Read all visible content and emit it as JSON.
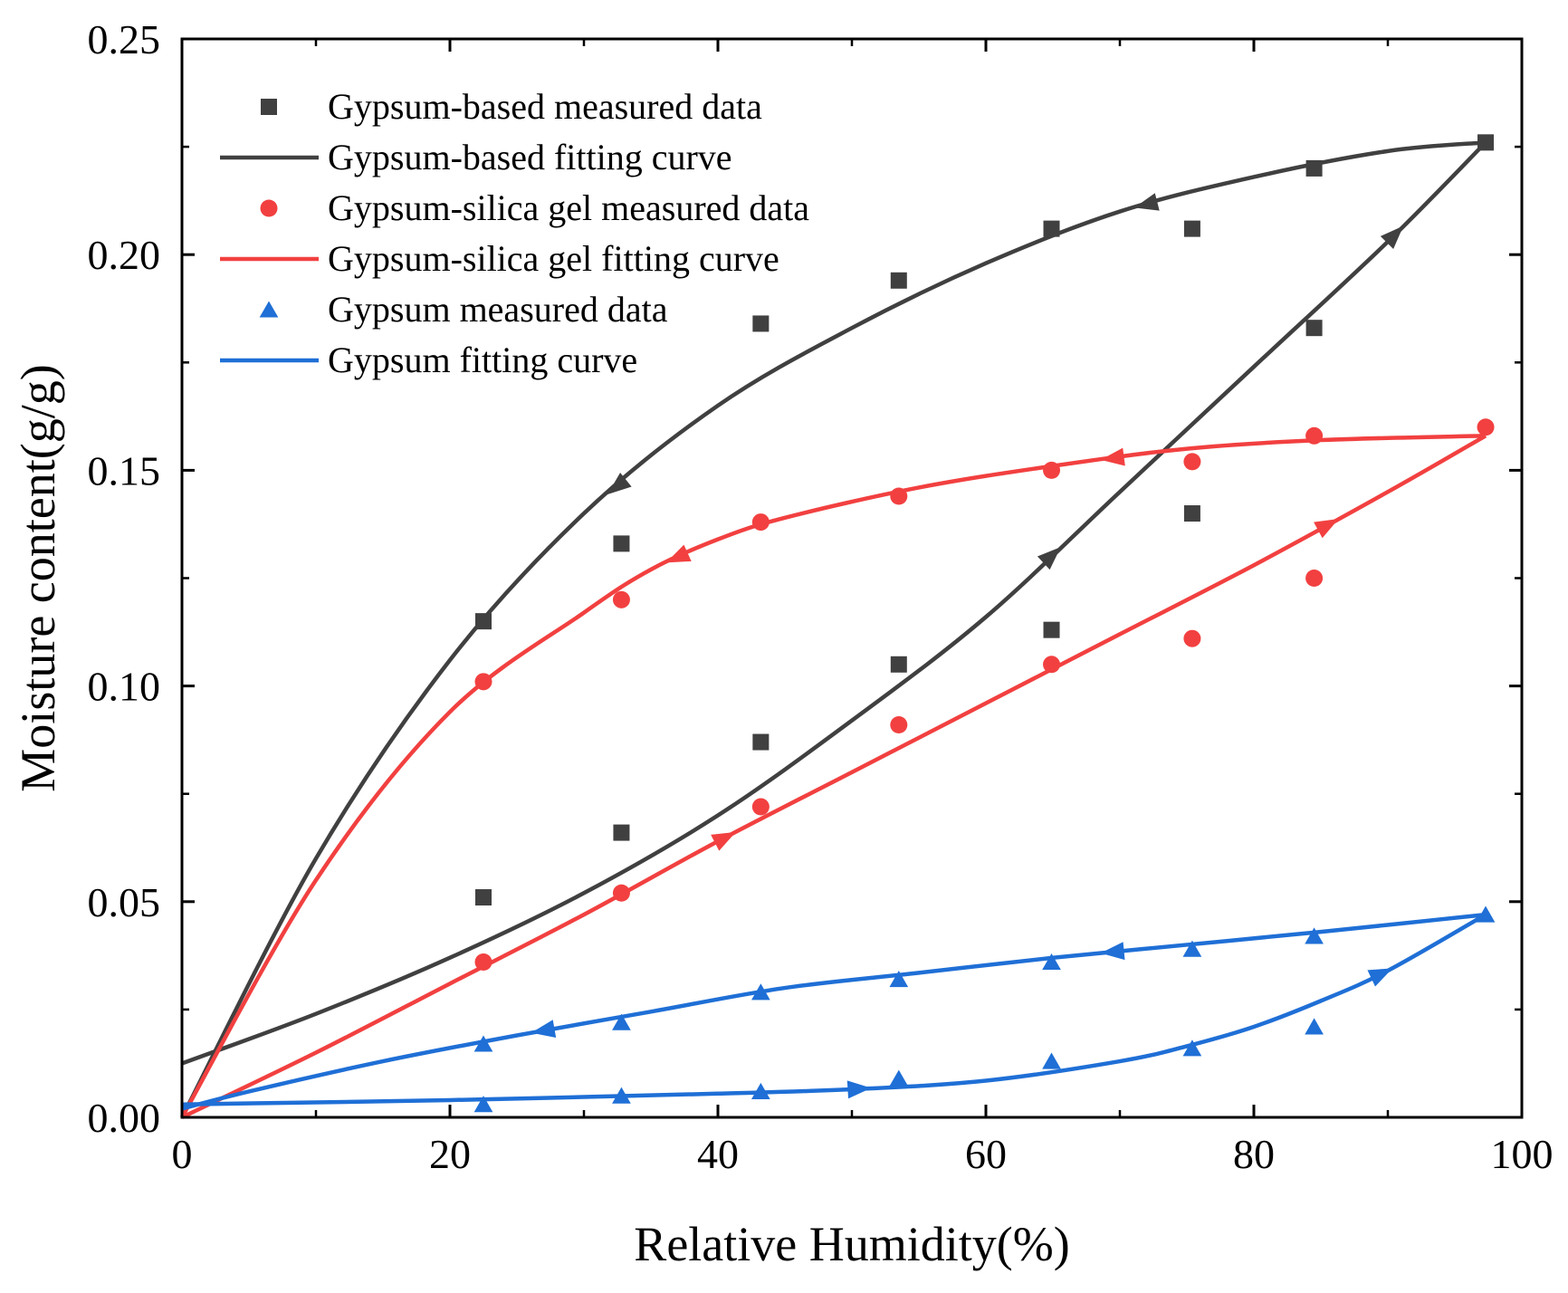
{
  "chart_data": {
    "type": "scatter",
    "xlabel": "Relative Humidity(%)",
    "ylabel": "Moisture content(g/g)",
    "xlim": [
      0,
      100
    ],
    "ylim": [
      0,
      0.25
    ],
    "xticks": [
      "0",
      "20",
      "40",
      "60",
      "80",
      "100"
    ],
    "yticks": [
      "0.00",
      "0.05",
      "0.10",
      "0.15",
      "0.20",
      "0.25"
    ],
    "grid": false,
    "legend_position": "top-left",
    "legend": [
      "Gypsum-based  measured data",
      "Gypsum-based fitting curve",
      "Gypsum-silica gel  measured data",
      "Gypsum-silica gel  fitting curve",
      "Gypsum measured data",
      "Gypsum fitting curve"
    ],
    "series": [
      {
        "name": "Gypsum-based  measured data",
        "kind": "points",
        "marker": "square",
        "color": "#404040",
        "x": [
          22.5,
          32.8,
          43.2,
          53.5,
          64.9,
          75.4,
          84.5,
          97.3,
          22.5,
          32.8,
          43.2,
          53.5,
          64.9,
          75.4,
          84.5
        ],
        "y": [
          0.051,
          0.066,
          0.087,
          0.105,
          0.113,
          0.14,
          0.183,
          0.226,
          0.115,
          0.133,
          0.184,
          0.194,
          0.206,
          0.206,
          0.22
        ]
      },
      {
        "name": "Gypsum-based fitting curve",
        "kind": "line",
        "color": "#404040",
        "branches": [
          {
            "x": [
              0,
              10,
              20,
              30,
              40,
              50,
              60,
              70,
              80,
              90,
              97.3
            ],
            "y": [
              0.0125,
              0.024,
              0.037,
              0.052,
              0.07,
              0.092,
              0.116,
              0.145,
              0.174,
              0.203,
              0.226
            ]
          },
          {
            "x": [
              97.3,
              90,
              80,
              70,
              60,
              50,
              40,
              30,
              20,
              10,
              0
            ],
            "y": [
              0.226,
              0.224,
              0.218,
              0.21,
              0.198,
              0.183,
              0.165,
              0.14,
              0.106,
              0.06,
              0.0
            ]
          }
        ],
        "arrows_x": [
          64.9,
          90.5,
          72,
          32.5
        ]
      },
      {
        "name": "Gypsum-silica gel  measured data",
        "kind": "points",
        "marker": "circle",
        "color": "#f24040",
        "x": [
          22.5,
          32.8,
          43.2,
          53.5,
          64.9,
          75.4,
          84.5,
          97.3,
          22.5,
          32.8,
          43.2,
          53.5,
          64.9,
          75.4,
          84.5
        ],
        "y": [
          0.036,
          0.052,
          0.072,
          0.091,
          0.105,
          0.111,
          0.125,
          0.16,
          0.101,
          0.12,
          0.138,
          0.144,
          0.15,
          0.152,
          0.158
        ]
      },
      {
        "name": "Gypsum-silica gel  fitting curve",
        "kind": "line",
        "color": "#f24040",
        "branches": [
          {
            "x": [
              0,
              10,
              20,
              30,
              40,
              50,
              60,
              70,
              80,
              90,
              97.3
            ],
            "y": [
              0.0,
              0.015,
              0.031,
              0.047,
              0.064,
              0.08,
              0.096,
              0.112,
              0.128,
              0.145,
              0.158
            ]
          },
          {
            "x": [
              97.3,
              85,
              75,
              65,
              55,
              45,
              40,
              35,
              30,
              20,
              10,
              0
            ],
            "y": [
              0.158,
              0.157,
              0.155,
              0.151,
              0.146,
              0.139,
              0.134,
              0.127,
              0.117,
              0.094,
              0.055,
              0.0
            ]
          }
        ],
        "arrows_x": [
          40.5,
          85.5,
          69.5,
          37
        ]
      },
      {
        "name": "Gypsum measured data",
        "kind": "points",
        "marker": "triangle",
        "color": "#1f6fd6",
        "x": [
          22.5,
          32.8,
          43.2,
          53.5,
          64.9,
          75.4,
          84.5,
          97.3,
          22.5,
          32.8,
          43.2,
          53.5,
          64.9,
          75.4,
          84.5
        ],
        "y": [
          0.003,
          0.005,
          0.006,
          0.009,
          0.013,
          0.016,
          0.021,
          0.047,
          0.017,
          0.022,
          0.029,
          0.032,
          0.036,
          0.039,
          0.042
        ]
      },
      {
        "name": "Gypsum fitting curve",
        "kind": "line",
        "color": "#1f6fd6",
        "branches": [
          {
            "x": [
              0,
              20,
              40,
              50,
              60,
              70,
              75,
              80,
              85,
              90,
              97.3
            ],
            "y": [
              0.003,
              0.004,
              0.0055,
              0.0065,
              0.0085,
              0.013,
              0.0165,
              0.021,
              0.027,
              0.034,
              0.047
            ]
          },
          {
            "x": [
              97.3,
              85,
              75,
              65,
              55,
              45,
              35,
              25,
              15,
              5,
              0
            ],
            "y": [
              0.047,
              0.043,
              0.04,
              0.037,
              0.0335,
              0.03,
              0.0245,
              0.019,
              0.013,
              0.006,
              0.002
            ]
          }
        ],
        "arrows_x": [
          50.5,
          89.5,
          69.5,
          27
        ]
      }
    ]
  }
}
